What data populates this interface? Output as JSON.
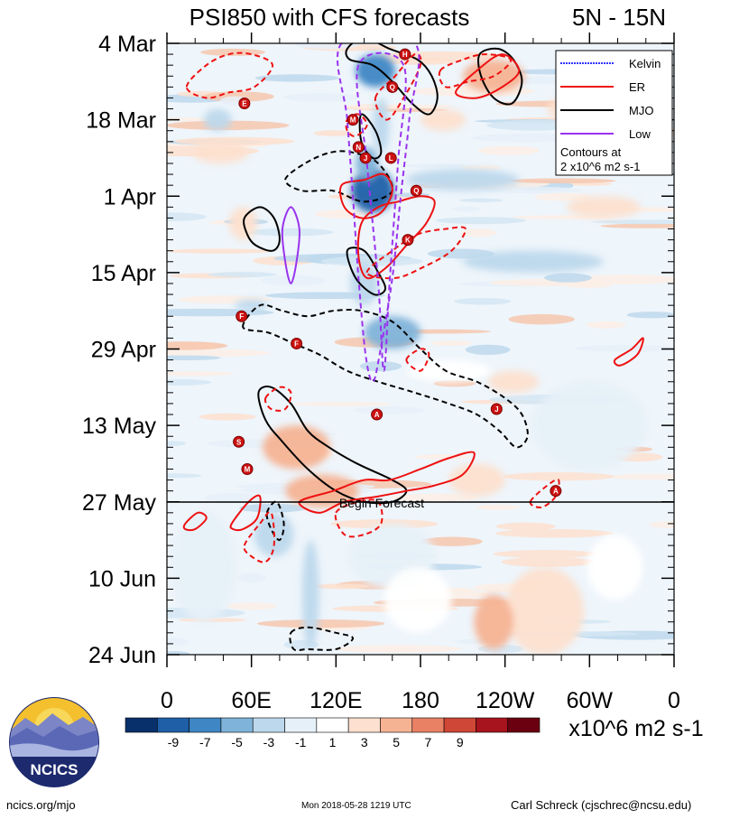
{
  "chart_data": {
    "type": "heatmap",
    "title": "PSI850 with CFS forecasts",
    "region": "5N - 15N",
    "y_ticks": [
      "4 Mar",
      "18 Mar",
      "1 Apr",
      "15 Apr",
      "29 Apr",
      "13 May",
      "27 May",
      "10 Jun",
      "24 Jun"
    ],
    "x_ticks": [
      "0",
      "60E",
      "120E",
      "180",
      "120W",
      "60W",
      "0"
    ],
    "x_range_deg": [
      0,
      360
    ],
    "y_range_days": [
      0,
      112
    ],
    "forecast_label": "Begin Forecast",
    "forecast_day": 84,
    "legend": [
      {
        "name": "Kelvin",
        "color": "#3333ff",
        "style": "dotted"
      },
      {
        "name": "ER",
        "color": "#ee1111",
        "style": "solid"
      },
      {
        "name": "MJO",
        "color": "#000000",
        "style": "solid"
      },
      {
        "name": "Low",
        "color": "#9933ee",
        "style": "solid"
      }
    ],
    "contour_note": [
      "Contours at",
      "2 x10^6 m2 s-1"
    ],
    "colorbar": {
      "labels": [
        "-9",
        "-7",
        "-5",
        "-3",
        "-1",
        "1",
        "3",
        "5",
        "7",
        "9"
      ],
      "colors": [
        "#08306b",
        "#1f5fa8",
        "#3f86c4",
        "#7fb3d9",
        "#bdd8ec",
        "#e6f0f8",
        "#ffffff",
        "#fde0cf",
        "#f6b394",
        "#e98164",
        "#cf4736",
        "#a8141e",
        "#6b0010"
      ],
      "units": "x10^6 m2 s-1"
    },
    "storm_markers": [
      {
        "letter": "H",
        "lon": 169,
        "day": 2
      },
      {
        "letter": "Q",
        "lon": 160,
        "day": 8
      },
      {
        "letter": "E",
        "lon": 55,
        "day": 11
      },
      {
        "letter": "M",
        "lon": 132,
        "day": 14
      },
      {
        "letter": "N",
        "lon": 136,
        "day": 19
      },
      {
        "letter": "J",
        "lon": 141,
        "day": 21
      },
      {
        "letter": "L",
        "lon": 159,
        "day": 21
      },
      {
        "letter": "Q",
        "lon": 177,
        "day": 27
      },
      {
        "letter": "K",
        "lon": 171,
        "day": 36
      },
      {
        "letter": "F",
        "lon": 53,
        "day": 50
      },
      {
        "letter": "F",
        "lon": 92,
        "day": 55
      },
      {
        "letter": "A",
        "lon": 149,
        "day": 68
      },
      {
        "letter": "J",
        "lon": 234,
        "day": 67
      },
      {
        "letter": "S",
        "lon": 51,
        "day": 73
      },
      {
        "letter": "M",
        "lon": 57,
        "day": 78
      },
      {
        "letter": "A",
        "lon": 276,
        "day": 82
      }
    ],
    "contours": {
      "mjo_solid": [
        [
          [
            128,
            1
          ],
          [
            140,
            -1
          ],
          [
            158,
            1
          ],
          [
            178,
            3
          ],
          [
            188,
            6
          ],
          [
            192,
            10
          ],
          [
            186,
            13
          ],
          [
            174,
            11
          ],
          [
            160,
            7
          ],
          [
            146,
            4
          ],
          [
            130,
            3
          ]
        ],
        [
          [
            222,
            2
          ],
          [
            235,
            1
          ],
          [
            246,
            3
          ],
          [
            252,
            7
          ],
          [
            245,
            11
          ],
          [
            232,
            10
          ],
          [
            223,
            6
          ]
        ],
        [
          [
            138,
            13
          ],
          [
            148,
            16
          ],
          [
            152,
            20
          ],
          [
            146,
            21
          ],
          [
            138,
            18
          ]
        ],
        [
          [
            55,
            32
          ],
          [
            66,
            30
          ],
          [
            76,
            32
          ],
          [
            80,
            36
          ],
          [
            75,
            38
          ],
          [
            63,
            37
          ],
          [
            57,
            35
          ]
        ],
        [
          [
            128,
            38
          ],
          [
            140,
            38
          ],
          [
            150,
            42
          ],
          [
            155,
            45
          ],
          [
            147,
            46
          ],
          [
            134,
            43
          ]
        ],
        [
          [
            65,
            64
          ],
          [
            74,
            63
          ],
          [
            88,
            66
          ],
          [
            100,
            71
          ],
          [
            115,
            74
          ],
          [
            135,
            77
          ],
          [
            160,
            80
          ],
          [
            170,
            82
          ],
          [
            160,
            84
          ],
          [
            140,
            84
          ],
          [
            120,
            82
          ],
          [
            100,
            78
          ],
          [
            82,
            73
          ],
          [
            70,
            69
          ]
        ]
      ],
      "mjo_dashed": [
        [
          [
            84,
            25
          ],
          [
            98,
            22
          ],
          [
            116,
            20
          ],
          [
            132,
            20
          ],
          [
            150,
            22
          ],
          [
            160,
            27
          ],
          [
            140,
            29
          ],
          [
            118,
            27
          ],
          [
            96,
            27
          ]
        ],
        [
          [
            54,
            52
          ],
          [
            66,
            48
          ],
          [
            82,
            49
          ],
          [
            100,
            50
          ],
          [
            118,
            49
          ],
          [
            138,
            49
          ],
          [
            160,
            51
          ],
          [
            180,
            56
          ],
          [
            198,
            60
          ],
          [
            220,
            62
          ],
          [
            240,
            65
          ],
          [
            252,
            68
          ],
          [
            256,
            72
          ],
          [
            248,
            74
          ],
          [
            236,
            71
          ],
          [
            220,
            68
          ],
          [
            200,
            66
          ],
          [
            176,
            64
          ],
          [
            150,
            62
          ],
          [
            128,
            60
          ],
          [
            108,
            57
          ],
          [
            90,
            55
          ],
          [
            72,
            53
          ]
        ],
        [
          [
            71,
            86
          ],
          [
            78,
            84
          ],
          [
            83,
            88
          ],
          [
            80,
            91
          ],
          [
            74,
            89
          ]
        ],
        [
          [
            88,
            108
          ],
          [
            100,
            107
          ],
          [
            120,
            108
          ],
          [
            132,
            109
          ],
          [
            120,
            111
          ],
          [
            100,
            111
          ],
          [
            90,
            111
          ]
        ]
      ],
      "er_solid": [
        [
          [
            205,
            9
          ],
          [
            220,
            5
          ],
          [
            238,
            2
          ],
          [
            250,
            5
          ],
          [
            238,
            8
          ],
          [
            220,
            10
          ]
        ],
        [
          [
            124,
            26
          ],
          [
            140,
            25
          ],
          [
            154,
            24
          ],
          [
            160,
            27
          ],
          [
            152,
            31
          ],
          [
            138,
            32
          ],
          [
            126,
            30
          ]
        ],
        [
          [
            138,
            33
          ],
          [
            150,
            30
          ],
          [
            164,
            29
          ],
          [
            180,
            28
          ],
          [
            190,
            29
          ],
          [
            184,
            33
          ],
          [
            170,
            37
          ],
          [
            156,
            41
          ],
          [
            142,
            43
          ],
          [
            136,
            39
          ]
        ],
        [
          [
            94,
            84
          ],
          [
            118,
            82
          ],
          [
            140,
            80
          ],
          [
            158,
            80
          ],
          [
            180,
            78
          ],
          [
            200,
            76
          ],
          [
            218,
            75
          ],
          [
            210,
            79
          ],
          [
            190,
            81
          ],
          [
            170,
            82
          ],
          [
            150,
            83
          ],
          [
            126,
            84
          ],
          [
            108,
            86
          ]
        ],
        [
          [
            13,
            88
          ],
          [
            22,
            86
          ],
          [
            28,
            87
          ],
          [
            20,
            89
          ],
          [
            13,
            89
          ]
        ],
        [
          [
            46,
            88
          ],
          [
            58,
            84
          ],
          [
            66,
            83
          ],
          [
            64,
            87
          ],
          [
            54,
            89
          ],
          [
            47,
            89
          ]
        ],
        [
          [
            318,
            58
          ],
          [
            330,
            56
          ],
          [
            338,
            54
          ],
          [
            334,
            57
          ],
          [
            322,
            59
          ]
        ]
      ],
      "er_dashed": [
        [
          [
            14,
            8
          ],
          [
            28,
            4
          ],
          [
            44,
            2
          ],
          [
            60,
            2
          ],
          [
            75,
            4
          ],
          [
            62,
            8
          ],
          [
            44,
            9
          ],
          [
            28,
            10
          ]
        ],
        [
          [
            194,
            5
          ],
          [
            210,
            3
          ],
          [
            226,
            2
          ],
          [
            244,
            3
          ],
          [
            232,
            6
          ],
          [
            214,
            7
          ],
          [
            198,
            8
          ]
        ],
        [
          [
            128,
            14
          ],
          [
            136,
            13
          ],
          [
            142,
            15
          ],
          [
            134,
            17
          ],
          [
            128,
            16
          ]
        ],
        [
          [
            148,
            10
          ],
          [
            162,
            6
          ],
          [
            176,
            2
          ],
          [
            180,
            4
          ],
          [
            168,
            10
          ],
          [
            156,
            14
          ]
        ],
        [
          [
            142,
            42
          ],
          [
            160,
            38
          ],
          [
            178,
            35
          ],
          [
            198,
            34
          ],
          [
            212,
            34
          ],
          [
            202,
            38
          ],
          [
            182,
            41
          ],
          [
            162,
            43
          ]
        ],
        [
          [
            70,
            65
          ],
          [
            80,
            63
          ],
          [
            88,
            64
          ],
          [
            84,
            67
          ],
          [
            74,
            67
          ]
        ],
        [
          [
            55,
            92
          ],
          [
            66,
            88
          ],
          [
            74,
            86
          ],
          [
            76,
            92
          ],
          [
            70,
            95
          ],
          [
            60,
            94
          ]
        ],
        [
          [
            120,
            86
          ],
          [
            136,
            84
          ],
          [
            150,
            84
          ],
          [
            152,
            88
          ],
          [
            140,
            90
          ],
          [
            126,
            90
          ]
        ],
        [
          [
            258,
            84
          ],
          [
            270,
            81
          ],
          [
            278,
            80
          ],
          [
            276,
            83
          ],
          [
            266,
            85
          ]
        ],
        [
          [
            170,
            58
          ],
          [
            180,
            56
          ],
          [
            186,
            57
          ],
          [
            180,
            60
          ]
        ]
      ],
      "low_solid": [
        [
          [
            88,
            30
          ],
          [
            94,
            34
          ],
          [
            92,
            40
          ],
          [
            88,
            44
          ],
          [
            84,
            40
          ],
          [
            82,
            34
          ]
        ]
      ],
      "kelvin_dashed": [
        [
          [
            124,
            0
          ],
          [
            128,
            14
          ],
          [
            132,
            28
          ],
          [
            136,
            43
          ],
          [
            141,
            57
          ],
          [
            146,
            62
          ],
          [
            151,
            57
          ],
          [
            160,
            43
          ],
          [
            166,
            28
          ],
          [
            172,
            14
          ],
          [
            176,
            0
          ]
        ],
        [
          [
            136,
            4
          ],
          [
            142,
            22
          ],
          [
            150,
            44
          ],
          [
            154,
            60
          ],
          [
            158,
            44
          ],
          [
            164,
            22
          ],
          [
            168,
            4
          ]
        ]
      ]
    },
    "anomaly_blobs": [
      {
        "lon": 148,
        "day": 5,
        "rx": 14,
        "ry": 3,
        "v": -7
      },
      {
        "lon": 146,
        "day": 27,
        "rx": 15,
        "ry": 4,
        "v": -9
      },
      {
        "lon": 142,
        "day": 22,
        "rx": 8,
        "ry": 3,
        "v": -5
      },
      {
        "lon": 152,
        "day": 15,
        "rx": 6,
        "ry": 5,
        "v": -3
      },
      {
        "lon": 160,
        "day": 53,
        "rx": 20,
        "ry": 3,
        "v": -5
      },
      {
        "lon": 140,
        "day": 44,
        "rx": 10,
        "ry": 4,
        "v": -3
      },
      {
        "lon": 210,
        "day": 25,
        "rx": 40,
        "ry": 2,
        "v": -3
      },
      {
        "lon": 260,
        "day": 40,
        "rx": 50,
        "ry": 2,
        "v": -3
      },
      {
        "lon": 60,
        "day": 48,
        "rx": 12,
        "ry": 1,
        "v": -3
      },
      {
        "lon": 36,
        "day": 14,
        "rx": 10,
        "ry": 2,
        "v": -3
      },
      {
        "lon": 76,
        "day": 90,
        "rx": 14,
        "ry": 4,
        "v": -3
      },
      {
        "lon": 102,
        "day": 101,
        "rx": 6,
        "ry": 10,
        "v": -3
      },
      {
        "lon": 160,
        "day": 94,
        "rx": 30,
        "ry": 6,
        "v": -1
      },
      {
        "lon": 300,
        "day": 70,
        "rx": 40,
        "ry": 8,
        "v": -1
      },
      {
        "lon": 26,
        "day": 96,
        "rx": 22,
        "ry": 10,
        "v": -1
      },
      {
        "lon": 232,
        "day": 6,
        "rx": 22,
        "ry": 3,
        "v": 5
      },
      {
        "lon": 196,
        "day": 14,
        "rx": 16,
        "ry": 2,
        "v": 3
      },
      {
        "lon": 38,
        "day": 20,
        "rx": 20,
        "ry": 2,
        "v": 3
      },
      {
        "lon": 54,
        "day": 33,
        "rx": 10,
        "ry": 3,
        "v": 3
      },
      {
        "lon": 92,
        "day": 74,
        "rx": 24,
        "ry": 4,
        "v": 5
      },
      {
        "lon": 110,
        "day": 82,
        "rx": 26,
        "ry": 3,
        "v": 5
      },
      {
        "lon": 220,
        "day": 80,
        "rx": 20,
        "ry": 3,
        "v": 3
      },
      {
        "lon": 246,
        "day": 62,
        "rx": 18,
        "ry": 2,
        "v": 3
      },
      {
        "lon": 200,
        "day": 60,
        "rx": 30,
        "ry": 2,
        "v": 1
      },
      {
        "lon": 300,
        "day": 12,
        "rx": 30,
        "ry": 3,
        "v": 3
      },
      {
        "lon": 310,
        "day": 30,
        "rx": 26,
        "ry": 2,
        "v": 3
      },
      {
        "lon": 268,
        "day": 104,
        "rx": 28,
        "ry": 8,
        "v": 3
      },
      {
        "lon": 232,
        "day": 106,
        "rx": 14,
        "ry": 5,
        "v": 5
      },
      {
        "lon": 318,
        "day": 96,
        "rx": 20,
        "ry": 6,
        "v": 1
      },
      {
        "lon": 178,
        "day": 102,
        "rx": 24,
        "ry": 6,
        "v": 1
      }
    ]
  },
  "logo": {
    "text": "NCICS"
  },
  "footer": {
    "left": "ncics.org/mjo",
    "center": "Mon 2018-05-28 1219 UTC",
    "right": "Carl Schreck (cjschrec@ncsu.edu)"
  }
}
